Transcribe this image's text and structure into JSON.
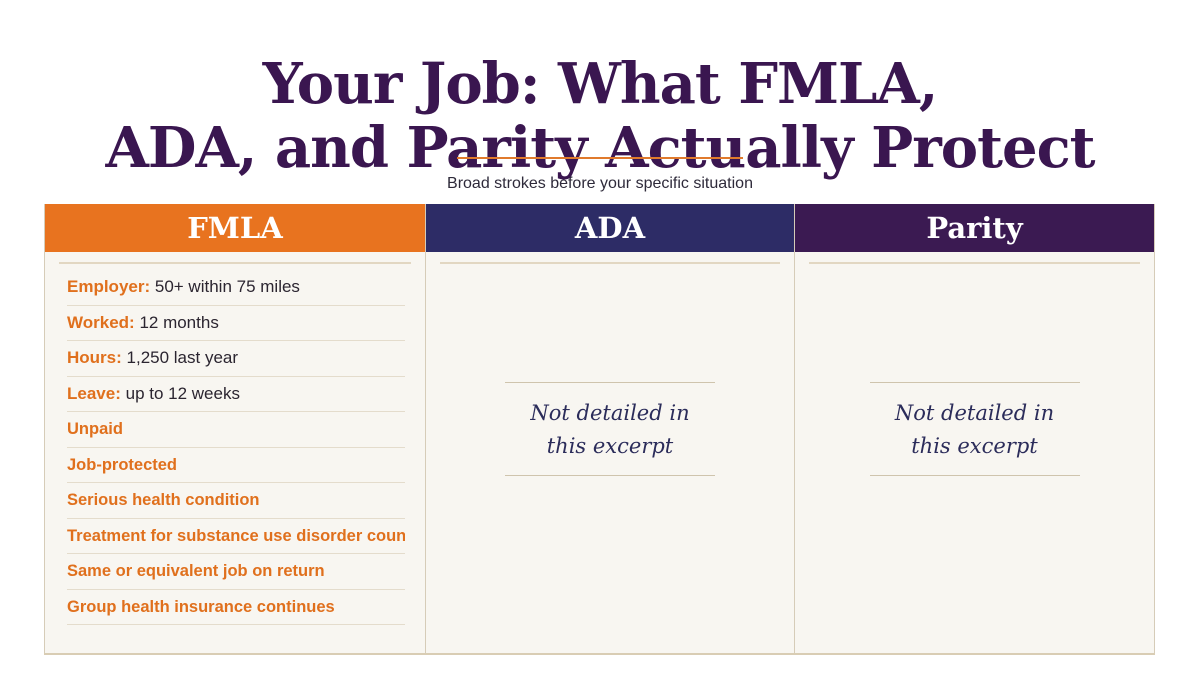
{
  "title": {
    "line1": "Your Job: What FMLA,",
    "line2": "ADA, and Parity Actually Protect"
  },
  "subtitle": "Broad strokes before your specific situation",
  "columns": {
    "fmla": {
      "heading": "FMLA",
      "items": [
        {
          "label": "Employer:",
          "value": "50+ within 75 miles"
        },
        {
          "label": "Worked:",
          "value": "12 months"
        },
        {
          "label": "Hours:",
          "value": "1,250 last year"
        },
        {
          "label": "Leave:",
          "value": "up to 12 weeks"
        },
        {
          "label": "Unpaid",
          "value": ""
        },
        {
          "label": "Job-protected",
          "value": ""
        },
        {
          "label": "Serious health condition",
          "value": ""
        },
        {
          "label": "Treatment for substance use disorder counts",
          "value": ""
        },
        {
          "label": "Same or equivalent job on return",
          "value": ""
        },
        {
          "label": "Group health insurance continues",
          "value": ""
        }
      ]
    },
    "ada": {
      "heading": "ADA",
      "note_line1": "Not detailed in",
      "note_line2": "this excerpt"
    },
    "parity": {
      "heading": "Parity",
      "note_line1": "Not detailed in",
      "note_line2": "this excerpt"
    }
  },
  "colors": {
    "title": "#3a1650",
    "fmla_header": "#e8731f",
    "ada_header": "#2d2c66",
    "parity_header": "#3b1a52",
    "accent_label": "#e0701d"
  }
}
